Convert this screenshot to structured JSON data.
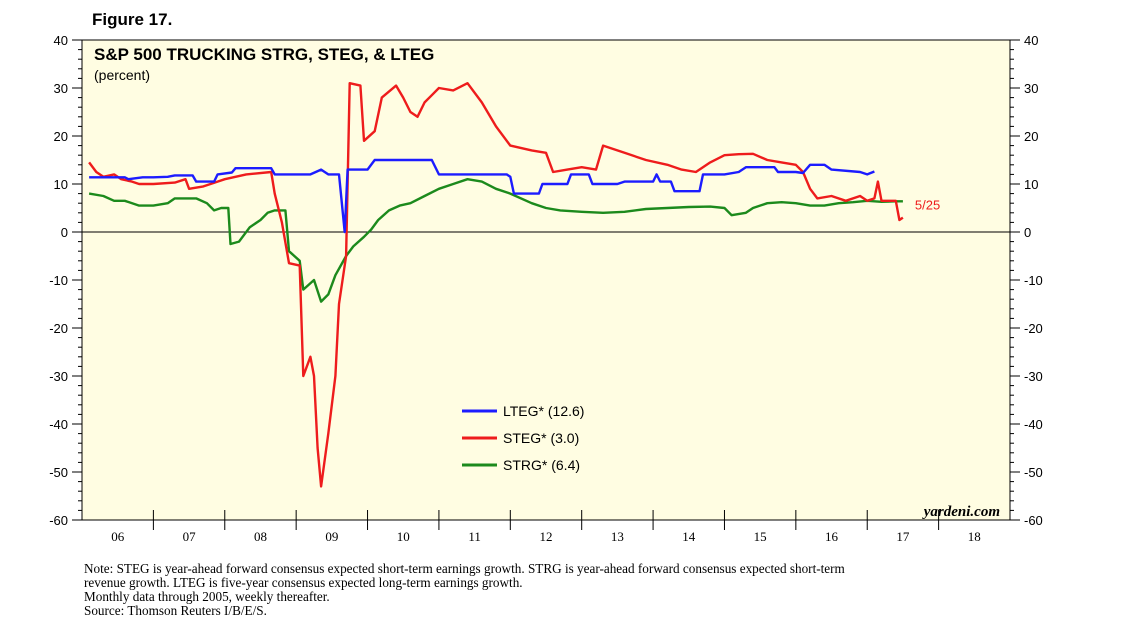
{
  "figure_label": "Figure 17.",
  "chart_data": {
    "type": "line",
    "title": "S&P 500 TRUCKING STRG, STEG, & LTEG",
    "subtitle": "(percent)",
    "ylim": [
      -60,
      40
    ],
    "y_ticks": [
      "40",
      "30",
      "20",
      "10",
      "0",
      "-10",
      "-20",
      "-30",
      "-40",
      "-50",
      "-60"
    ],
    "y_tick_values": [
      40,
      30,
      20,
      10,
      0,
      -10,
      -20,
      -30,
      -40,
      -50,
      -60
    ],
    "xlim": [
      2006.0,
      2019.0
    ],
    "x_tick_labels": [
      "06",
      "07",
      "08",
      "09",
      "10",
      "11",
      "12",
      "13",
      "14",
      "15",
      "16",
      "17",
      "18"
    ],
    "x_tick_label_years": [
      2006.5,
      2007.5,
      2008.5,
      2009.5,
      2010.5,
      2011.5,
      2012.5,
      2013.5,
      2014.5,
      2015.5,
      2016.5,
      2017.5,
      2018.5
    ],
    "last_point_label": "5/25",
    "watermark": "yardeni.com",
    "series": [
      {
        "name": "LTEG",
        "legend": "LTEG* (12.6)",
        "color": "#1c1cff",
        "points": [
          [
            2006.1,
            11.4
          ],
          [
            2006.6,
            11.4
          ],
          [
            2006.65,
            11.0
          ],
          [
            2006.85,
            11.4
          ],
          [
            2007.0,
            11.4
          ],
          [
            2007.2,
            11.5
          ],
          [
            2007.3,
            11.8
          ],
          [
            2007.55,
            11.8
          ],
          [
            2007.6,
            10.5
          ],
          [
            2007.85,
            10.5
          ],
          [
            2007.9,
            12.0
          ],
          [
            2008.1,
            12.4
          ],
          [
            2008.15,
            13.3
          ],
          [
            2008.65,
            13.3
          ],
          [
            2008.7,
            12.0
          ],
          [
            2009.2,
            12.0
          ],
          [
            2009.35,
            13.0
          ],
          [
            2009.45,
            12.0
          ],
          [
            2009.6,
            12.0
          ],
          [
            2009.68,
            0.0
          ],
          [
            2009.72,
            13.0
          ],
          [
            2010.0,
            13.0
          ],
          [
            2010.1,
            15.0
          ],
          [
            2010.9,
            15.0
          ],
          [
            2011.0,
            12.0
          ],
          [
            2011.3,
            12.0
          ],
          [
            2011.6,
            12.0
          ],
          [
            2011.95,
            12.0
          ],
          [
            2012.0,
            11.5
          ],
          [
            2012.05,
            8.0
          ],
          [
            2012.4,
            8.0
          ],
          [
            2012.45,
            10.0
          ],
          [
            2012.8,
            10.0
          ],
          [
            2012.85,
            12.0
          ],
          [
            2013.1,
            12.0
          ],
          [
            2013.15,
            10.0
          ],
          [
            2013.5,
            10.0
          ],
          [
            2013.6,
            10.5
          ],
          [
            2014.0,
            10.5
          ],
          [
            2014.05,
            12.0
          ],
          [
            2014.1,
            10.5
          ],
          [
            2014.25,
            10.5
          ],
          [
            2014.3,
            8.5
          ],
          [
            2014.65,
            8.5
          ],
          [
            2014.7,
            12.0
          ],
          [
            2015.0,
            12.0
          ],
          [
            2015.2,
            12.5
          ],
          [
            2015.3,
            13.5
          ],
          [
            2015.6,
            13.5
          ],
          [
            2015.7,
            13.5
          ],
          [
            2015.75,
            12.5
          ],
          [
            2016.0,
            12.5
          ],
          [
            2016.1,
            12.3
          ],
          [
            2016.2,
            14.0
          ],
          [
            2016.4,
            14.0
          ],
          [
            2016.5,
            13.0
          ],
          [
            2016.9,
            12.5
          ],
          [
            2017.0,
            12.0
          ],
          [
            2017.1,
            12.6
          ]
        ]
      },
      {
        "name": "STEG",
        "legend": "STEG* (3.0)",
        "color": "#ee1c1c",
        "points": [
          [
            2006.1,
            14.5
          ],
          [
            2006.2,
            12.5
          ],
          [
            2006.3,
            11.5
          ],
          [
            2006.45,
            12.0
          ],
          [
            2006.55,
            11.0
          ],
          [
            2006.7,
            10.5
          ],
          [
            2006.8,
            10.0
          ],
          [
            2007.0,
            10.0
          ],
          [
            2007.3,
            10.3
          ],
          [
            2007.45,
            11.0
          ],
          [
            2007.5,
            9.0
          ],
          [
            2007.7,
            9.5
          ],
          [
            2007.9,
            10.5
          ],
          [
            2008.0,
            11.0
          ],
          [
            2008.3,
            12.0
          ],
          [
            2008.65,
            12.5
          ],
          [
            2008.7,
            8.0
          ],
          [
            2008.8,
            2.0
          ],
          [
            2008.9,
            -6.5
          ],
          [
            2009.05,
            -7.0
          ],
          [
            2009.1,
            -30.0
          ],
          [
            2009.2,
            -26.0
          ],
          [
            2009.25,
            -30.0
          ],
          [
            2009.3,
            -45.0
          ],
          [
            2009.35,
            -53.0
          ],
          [
            2009.45,
            -42.0
          ],
          [
            2009.55,
            -30.0
          ],
          [
            2009.6,
            -15.0
          ],
          [
            2009.7,
            -5.0
          ],
          [
            2009.75,
            31.0
          ],
          [
            2009.9,
            30.5
          ],
          [
            2009.95,
            19.0
          ],
          [
            2010.1,
            21.0
          ],
          [
            2010.2,
            28.0
          ],
          [
            2010.4,
            30.5
          ],
          [
            2010.5,
            28.0
          ],
          [
            2010.6,
            25.0
          ],
          [
            2010.7,
            24.0
          ],
          [
            2010.8,
            27.0
          ],
          [
            2010.9,
            28.5
          ],
          [
            2011.0,
            30.0
          ],
          [
            2011.2,
            29.5
          ],
          [
            2011.4,
            31.0
          ],
          [
            2011.6,
            27.0
          ],
          [
            2011.8,
            22.0
          ],
          [
            2012.0,
            18.0
          ],
          [
            2012.3,
            17.0
          ],
          [
            2012.5,
            16.5
          ],
          [
            2012.6,
            12.5
          ],
          [
            2012.8,
            13.0
          ],
          [
            2013.0,
            13.5
          ],
          [
            2013.2,
            13.0
          ],
          [
            2013.3,
            18.0
          ],
          [
            2013.6,
            16.5
          ],
          [
            2013.9,
            15.0
          ],
          [
            2014.2,
            14.0
          ],
          [
            2014.4,
            13.0
          ],
          [
            2014.6,
            12.5
          ],
          [
            2014.8,
            14.5
          ],
          [
            2015.0,
            16.0
          ],
          [
            2015.2,
            16.2
          ],
          [
            2015.4,
            16.3
          ],
          [
            2015.6,
            15.0
          ],
          [
            2015.8,
            14.5
          ],
          [
            2016.0,
            14.0
          ],
          [
            2016.1,
            12.5
          ],
          [
            2016.2,
            9.0
          ],
          [
            2016.3,
            7.0
          ],
          [
            2016.5,
            7.5
          ],
          [
            2016.7,
            6.5
          ],
          [
            2016.9,
            7.5
          ],
          [
            2017.0,
            6.5
          ],
          [
            2017.1,
            7.0
          ],
          [
            2017.15,
            10.5
          ],
          [
            2017.2,
            6.5
          ],
          [
            2017.4,
            6.5
          ],
          [
            2017.45,
            2.5
          ],
          [
            2017.5,
            3.0
          ]
        ]
      },
      {
        "name": "STRG",
        "legend": "STRG* (6.4)",
        "color": "#1c8a1c",
        "points": [
          [
            2006.1,
            8.0
          ],
          [
            2006.3,
            7.5
          ],
          [
            2006.45,
            6.5
          ],
          [
            2006.6,
            6.5
          ],
          [
            2006.8,
            5.5
          ],
          [
            2007.0,
            5.5
          ],
          [
            2007.2,
            6.0
          ],
          [
            2007.3,
            7.0
          ],
          [
            2007.6,
            7.0
          ],
          [
            2007.75,
            6.0
          ],
          [
            2007.85,
            4.5
          ],
          [
            2007.95,
            5.0
          ],
          [
            2008.05,
            5.0
          ],
          [
            2008.08,
            -2.5
          ],
          [
            2008.2,
            -2.0
          ],
          [
            2008.35,
            1.0
          ],
          [
            2008.5,
            2.5
          ],
          [
            2008.6,
            4.0
          ],
          [
            2008.7,
            4.5
          ],
          [
            2008.85,
            4.5
          ],
          [
            2008.9,
            -4.0
          ],
          [
            2009.05,
            -6.0
          ],
          [
            2009.1,
            -12.0
          ],
          [
            2009.25,
            -10.0
          ],
          [
            2009.35,
            -14.5
          ],
          [
            2009.45,
            -13.0
          ],
          [
            2009.55,
            -9.0
          ],
          [
            2009.7,
            -5.0
          ],
          [
            2009.8,
            -3.0
          ],
          [
            2009.95,
            -1.0
          ],
          [
            2010.05,
            0.5
          ],
          [
            2010.15,
            2.5
          ],
          [
            2010.3,
            4.5
          ],
          [
            2010.45,
            5.5
          ],
          [
            2010.6,
            6.0
          ],
          [
            2010.8,
            7.5
          ],
          [
            2011.0,
            9.0
          ],
          [
            2011.2,
            10.0
          ],
          [
            2011.4,
            11.0
          ],
          [
            2011.6,
            10.5
          ],
          [
            2011.8,
            9.0
          ],
          [
            2012.0,
            8.0
          ],
          [
            2012.3,
            6.0
          ],
          [
            2012.5,
            5.0
          ],
          [
            2012.7,
            4.5
          ],
          [
            2013.0,
            4.2
          ],
          [
            2013.3,
            4.0
          ],
          [
            2013.6,
            4.2
          ],
          [
            2013.9,
            4.8
          ],
          [
            2014.2,
            5.0
          ],
          [
            2014.5,
            5.2
          ],
          [
            2014.8,
            5.3
          ],
          [
            2015.0,
            5.0
          ],
          [
            2015.1,
            3.5
          ],
          [
            2015.3,
            4.0
          ],
          [
            2015.4,
            5.0
          ],
          [
            2015.6,
            6.0
          ],
          [
            2015.8,
            6.2
          ],
          [
            2016.0,
            6.0
          ],
          [
            2016.2,
            5.5
          ],
          [
            2016.4,
            5.5
          ],
          [
            2016.6,
            6.0
          ],
          [
            2016.8,
            6.2
          ],
          [
            2017.0,
            6.5
          ],
          [
            2017.2,
            6.3
          ],
          [
            2017.4,
            6.4
          ],
          [
            2017.5,
            6.4
          ]
        ]
      }
    ]
  },
  "notes": {
    "line1": "Note: STEG is year-ahead forward consensus expected short-term earnings growth. STRG is year-ahead forward consensus expected short-term",
    "line2": "revenue growth. LTEG is five-year consensus expected long-term earnings growth.",
    "line3": "Monthly data through 2005, weekly thereafter.",
    "line4": "Source: Thomson Reuters I/B/E/S."
  }
}
